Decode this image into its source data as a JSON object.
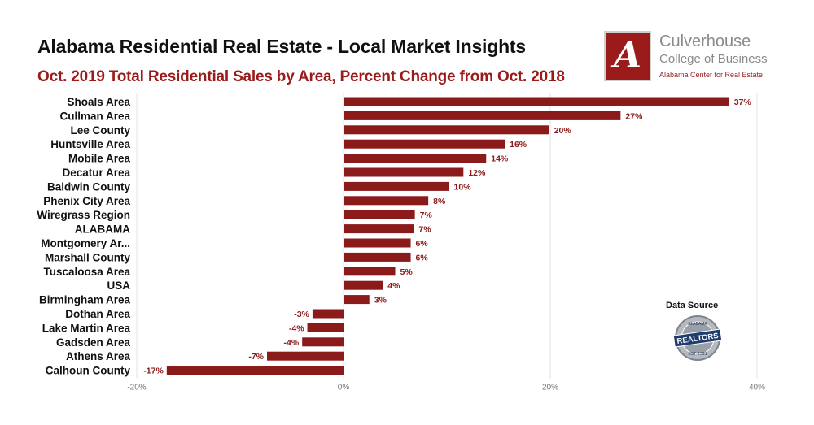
{
  "header": {
    "title": "Alabama Residential Real Estate - Local Market Insights",
    "subtitle": "Oct. 2019 Total Residential Sales by Area, Percent Change from Oct. 2018"
  },
  "logo": {
    "letter": "A",
    "line1": "Culverhouse",
    "line2": "College of Business",
    "line3": "Alabama Center for Real Estate"
  },
  "source": {
    "title": "Data Source",
    "badge_text": "REALTORS",
    "badge_top_text": "ALABAMA",
    "badge_bottom_text": "EST. 1921"
  },
  "colors": {
    "bar": "#8b1a1a",
    "grid": "#e3e3e3",
    "accent": "#9b1b1b"
  },
  "chart_data": {
    "type": "bar",
    "orientation": "horizontal",
    "title": "Oct. 2019 Total Residential Sales by Area, Percent Change from Oct. 2018",
    "xlabel": "",
    "ylabel": "",
    "xlim": [
      -20,
      40
    ],
    "xticks": [
      -20,
      0,
      20,
      40
    ],
    "tick_labels": [
      "-20%",
      "0%",
      "20%",
      "40%"
    ],
    "grid": true,
    "categories": [
      "Shoals Area",
      "Cullman Area",
      "Lee County",
      "Huntsville Area",
      "Mobile Area",
      "Decatur Area",
      "Baldwin County",
      "Phenix City Area",
      "Wiregrass Region",
      "ALABAMA",
      "Montgomery Ar...",
      "Marshall County",
      "Tuscaloosa Area",
      "USA",
      "Birmingham Area",
      "Dothan Area",
      "Lake Martin Area",
      "Gadsden Area",
      "Athens Area",
      "Calhoun County"
    ],
    "values": [
      37.3,
      26.8,
      19.9,
      15.6,
      13.8,
      11.6,
      10.2,
      8.2,
      6.9,
      6.8,
      6.5,
      6.5,
      5.0,
      3.8,
      2.5,
      -3.0,
      -3.5,
      -4.0,
      -7.4,
      -17.1
    ],
    "value_labels": [
      "37%",
      "27%",
      "20%",
      "16%",
      "14%",
      "12%",
      "10%",
      "8%",
      "7%",
      "7%",
      "6%",
      "6%",
      "5%",
      "4%",
      "3%",
      "-3%",
      "-4%",
      "-4%",
      "-7%",
      "-17%"
    ]
  }
}
